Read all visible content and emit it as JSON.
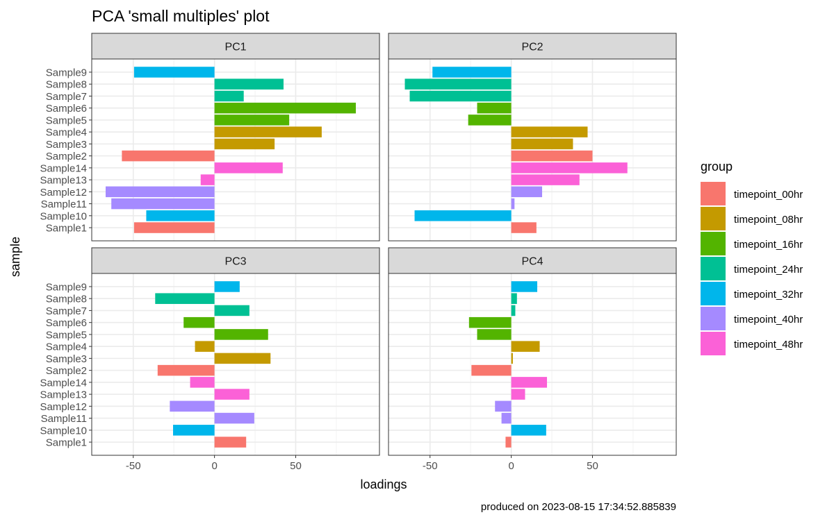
{
  "chart_data": {
    "type": "bar",
    "orientation": "horizontal",
    "title": "PCA 'small multiples' plot",
    "xlabel": "loadings",
    "ylabel": "sample",
    "caption": "produced on 2023-08-15 17:34:52.885839",
    "xlim": [
      -67,
      93
    ],
    "xticks": [
      -50,
      0,
      50
    ],
    "xtick_labels": [
      "-50",
      "0",
      "50"
    ],
    "grid": true,
    "facet_layout": "2x2",
    "legend": {
      "title": "group",
      "position": "right",
      "entries": [
        {
          "label": "timepoint_00hr",
          "color": "#F8766D"
        },
        {
          "label": "timepoint_08hr",
          "color": "#C49A00"
        },
        {
          "label": "timepoint_16hr",
          "color": "#53B400"
        },
        {
          "label": "timepoint_24hr",
          "color": "#00C094"
        },
        {
          "label": "timepoint_32hr",
          "color": "#00B6EB"
        },
        {
          "label": "timepoint_40hr",
          "color": "#A58AFF"
        },
        {
          "label": "timepoint_48hr",
          "color": "#FB61D7"
        }
      ]
    },
    "samples": [
      "Sample9",
      "Sample8",
      "Sample7",
      "Sample6",
      "Sample5",
      "Sample4",
      "Sample3",
      "Sample2",
      "Sample14",
      "Sample13",
      "Sample12",
      "Sample11",
      "Sample10",
      "Sample1"
    ],
    "sample_groups": [
      "timepoint_32hr",
      "timepoint_24hr",
      "timepoint_24hr",
      "timepoint_16hr",
      "timepoint_16hr",
      "timepoint_08hr",
      "timepoint_08hr",
      "timepoint_00hr",
      "timepoint_48hr",
      "timepoint_48hr",
      "timepoint_40hr",
      "timepoint_40hr",
      "timepoint_32hr",
      "timepoint_00hr"
    ],
    "panels": [
      {
        "name": "PC1",
        "values": [
          -49.5,
          42.5,
          18.0,
          87.0,
          46.0,
          66.0,
          37.0,
          -57.0,
          42.0,
          -8.5,
          -67.0,
          -63.5,
          -42.0,
          -49.5
        ]
      },
      {
        "name": "PC2",
        "values": [
          -48.5,
          -65.5,
          -62.5,
          -21.0,
          -26.5,
          47.0,
          38.0,
          50.0,
          71.5,
          42.0,
          19.0,
          2.0,
          -59.5,
          15.5
        ]
      },
      {
        "name": "PC3",
        "values": [
          15.5,
          -36.5,
          21.5,
          -19.0,
          33.0,
          -12.0,
          34.5,
          -35.0,
          -15.0,
          21.5,
          -27.5,
          24.5,
          -25.5,
          19.5
        ]
      },
      {
        "name": "PC4",
        "values": [
          16.0,
          3.5,
          2.5,
          -26.0,
          -21.0,
          17.5,
          1.0,
          -24.5,
          22.0,
          8.5,
          -10.0,
          -6.0,
          21.5,
          -3.5
        ]
      }
    ]
  }
}
